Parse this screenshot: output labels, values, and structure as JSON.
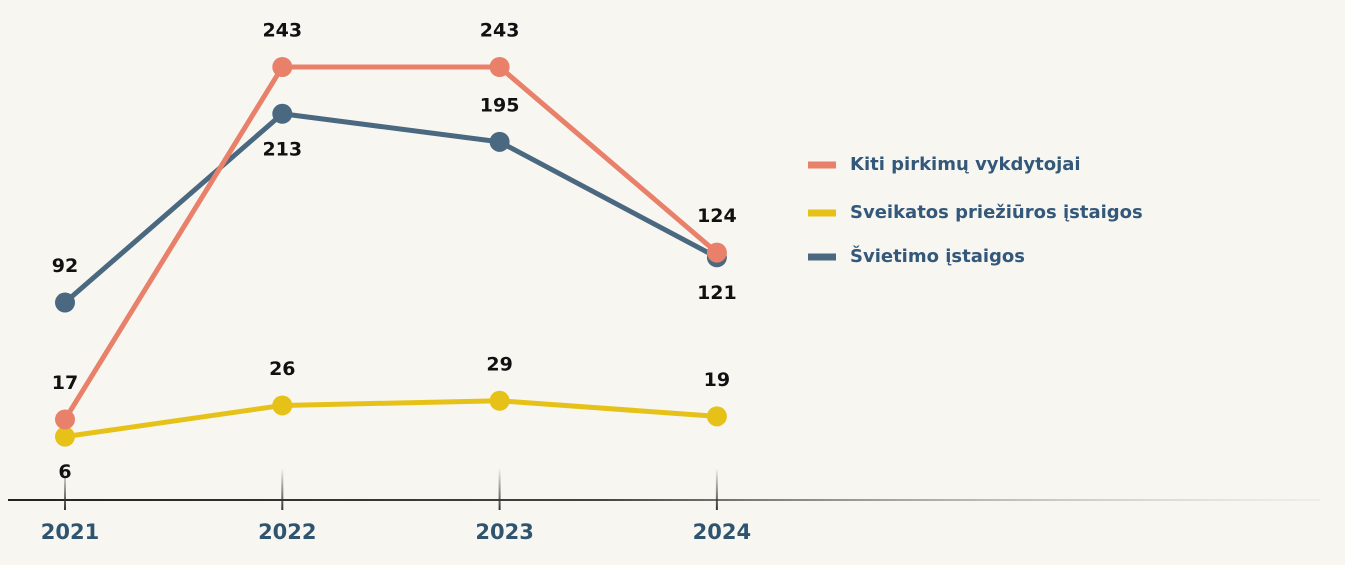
{
  "chart_data": {
    "type": "line",
    "categories": [
      "2021",
      "2022",
      "2023",
      "2024"
    ],
    "series": [
      {
        "name": "Kiti pirkimų vykdytojai",
        "color": "#e8806a",
        "values": [
          17,
          243,
          243,
          124
        ]
      },
      {
        "name": "Sveikatos priežiūros įstaigos",
        "color": "#e6c219",
        "values": [
          6,
          26,
          29,
          19
        ]
      },
      {
        "name": "Švietimo įstaigos",
        "color": "#4a6880",
        "values": [
          92,
          213,
          195,
          121
        ]
      }
    ]
  }
}
